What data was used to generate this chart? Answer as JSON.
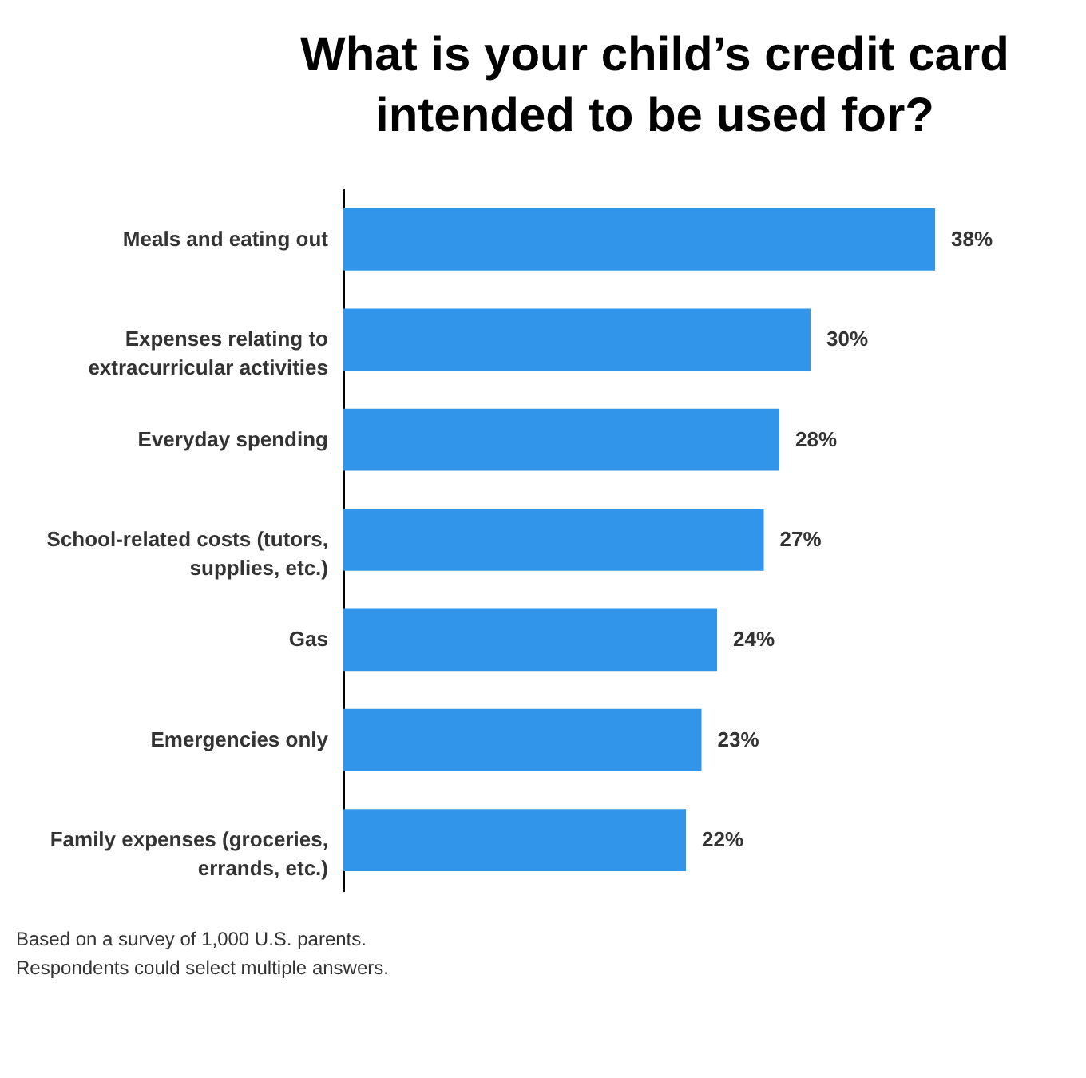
{
  "chart_data": {
    "type": "bar",
    "orientation": "horizontal",
    "title": "What is your child’s credit card intended to be used for?",
    "categories": [
      "Meals and eating out",
      "Expenses relating to extracurricular activities",
      "Everyday spending",
      "School-related costs (tutors, supplies, etc.)",
      "Gas",
      "Emergencies only",
      "Family expenses (groceries, errands, etc.)"
    ],
    "values": [
      38,
      30,
      28,
      27,
      24,
      23,
      22
    ],
    "value_labels": [
      "38%",
      "30%",
      "28%",
      "27%",
      "24%",
      "23%",
      "22%"
    ],
    "color": "#3196ea",
    "grid": false,
    "tick_labels": "y",
    "annotations": [
      "Based on a survey of 1,000 U.S. parents.",
      "Respondents could select multiple answers."
    ]
  }
}
